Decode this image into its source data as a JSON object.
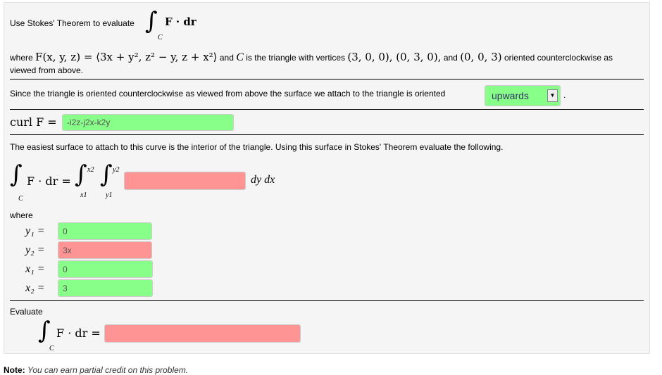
{
  "intro": "Use Stokes' Theorem to evaluate",
  "integral_expr": "F · dr",
  "where_line": {
    "where": "where",
    "F_def": "F(x, y, z) = ⟨3x + y², z² − y, z + x²⟩",
    "and1": "and",
    "C": "C",
    "rest": "is the triangle with vertices",
    "v1": "(3, 0, 0), (0, 3, 0),",
    "and2": "and",
    "v3": "(0, 0, 3)",
    "tail": "oriented counterclockwise as",
    "tail2": "viewed from above."
  },
  "orientation": {
    "text": "Since the triangle is oriented counterclockwise as viewed from above the surface we attach to the triangle is oriented",
    "selected": "upwards",
    "period": "."
  },
  "curl": {
    "label": "curl F =",
    "value": "-i2z-j2x-k2y"
  },
  "surface_text": "The easiest surface to attach to this curve is the interior of the triangle. Using this surface in Stokes' Theorem evaluate the following.",
  "double_integral": {
    "lhs": "F · dr =",
    "upper_outer": "x2",
    "lower_outer": "x1",
    "upper_inner": "y2",
    "lower_inner": "y1",
    "integrand": "",
    "diff": "dy dx",
    "C": "C"
  },
  "where": "where",
  "limits": [
    {
      "label": "y₁ =",
      "value": "0",
      "status": "correct"
    },
    {
      "label": "y₂ =",
      "value": "3x",
      "status": "incorrect"
    },
    {
      "label": "x₁ =",
      "value": "0",
      "status": "correct"
    },
    {
      "label": "x₂ =",
      "value": "3",
      "status": "correct"
    }
  ],
  "evaluate": {
    "label": "Evaluate",
    "expr": "F · dr =",
    "value": ""
  },
  "note": {
    "bold": "Note:",
    "text": "You can earn partial credit on this problem."
  },
  "colors": {
    "correct": "#88ff88",
    "incorrect": "#ff9494"
  }
}
